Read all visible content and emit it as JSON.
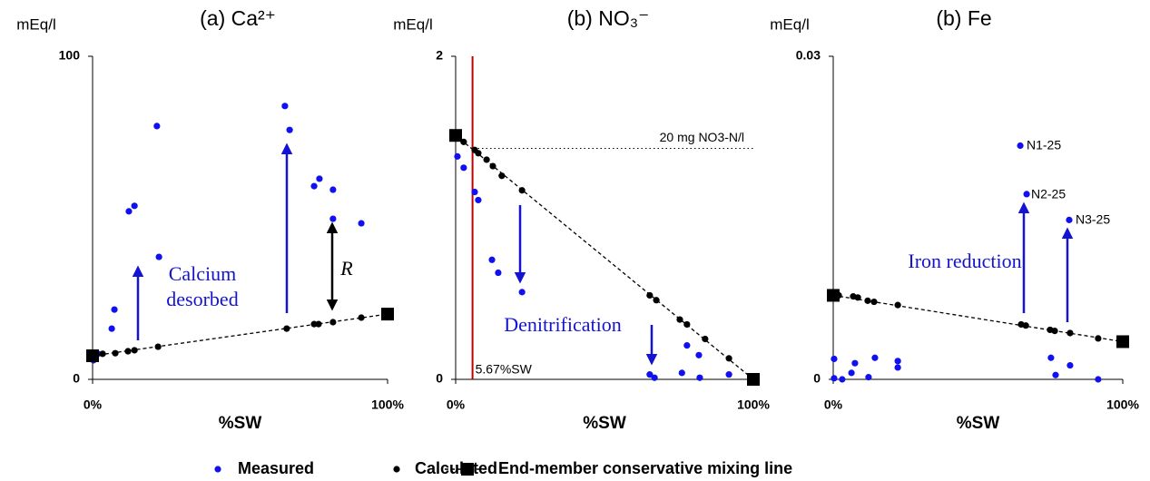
{
  "chart_data": [
    {
      "type": "scatter",
      "title": "(a) Ca²⁺",
      "ylabel": "mEq/l",
      "xlabel": "%SW",
      "xlim": [
        0,
        100
      ],
      "ylim": [
        0,
        100
      ],
      "xticks": [
        {
          "value": 0,
          "label": "0%"
        },
        {
          "value": 100,
          "label": "100%"
        }
      ],
      "yticks": [
        0,
        100
      ],
      "series": [
        {
          "name": "Measured",
          "color": "#1010f0",
          "x": [
            0.3,
            1.8,
            6.5,
            7.4,
            12.3,
            14.2,
            22.5,
            21.8,
            65.2,
            66.8,
            75.1,
            76.9,
            81.5,
            81.5,
            91.1
          ],
          "values": [
            5.9,
            7.9,
            15.7,
            21.6,
            52,
            53.7,
            37.9,
            78.4,
            84.6,
            77.2,
            59.8,
            62.1,
            58.7,
            49.7,
            48.3
          ]
        },
        {
          "name": "Calculated",
          "color": "#000000",
          "x": [
            0.3,
            3.4,
            7.7,
            12,
            14.2,
            22.2,
            65.8,
            75.1,
            76.6,
            81.5,
            91.1
          ],
          "values": [
            7.6,
            7.9,
            8.1,
            8.7,
            9.0,
            10.1,
            15.7,
            17.1,
            17.1,
            17.7,
            19.1
          ]
        },
        {
          "name": "End-member conservative mixing line",
          "color": "#000000",
          "x": [
            0,
            100
          ],
          "values": [
            7.3,
            20.2
          ]
        }
      ],
      "annotations": [
        "Calcium",
        "desorbed",
        "R"
      ]
    },
    {
      "type": "scatter",
      "title": "(b) NO₃⁻",
      "ylabel": "mEq/l",
      "xlabel": "%SW",
      "xlim": [
        0,
        100
      ],
      "ylim": [
        0,
        2
      ],
      "xticks": [
        {
          "value": 0,
          "label": "0%"
        },
        {
          "value": 100,
          "label": "100%"
        }
      ],
      "yticks": [
        0,
        2
      ],
      "vline": {
        "value": 5.67,
        "label": "5.67%SW",
        "color": "#c00000"
      },
      "hline": {
        "value": 1.43,
        "label": "20 mg NO3-N/l"
      },
      "series": [
        {
          "color": "#1010f0",
          "x": [
            0.6,
            2.7,
            6.4,
            7.6,
            12.2,
            14.3,
            22.3,
            65.2,
            66.8,
            76,
            77.7,
            81.7,
            82,
            91.8
          ],
          "values": [
            1.38,
            1.31,
            1.16,
            1.11,
            0.74,
            0.66,
            0.54,
            0.03,
            0.01,
            0.04,
            0.21,
            0.15,
            0.01,
            0.03
          ]
        },
        {
          "color": "#000000",
          "x": [
            2.7,
            6.4,
            7.6,
            10.4,
            12.5,
            15.5,
            22.3,
            65.2,
            67.4,
            75.3,
            77.7,
            83.8,
            91.8
          ],
          "values": [
            1.47,
            1.42,
            1.4,
            1.36,
            1.32,
            1.26,
            1.17,
            0.52,
            0.49,
            0.37,
            0.34,
            0.25,
            0.13
          ]
        },
        {
          "color": "#000000",
          "x": [
            0,
            100
          ],
          "values": [
            1.51,
            0
          ]
        }
      ],
      "annotations": [
        "Denitrification"
      ]
    },
    {
      "type": "scatter",
      "title": "(b) Fe",
      "ylabel": "mEq/l",
      "xlabel": "%SW",
      "xlim": [
        0,
        100
      ],
      "ylim": [
        0,
        0.03
      ],
      "xticks": [
        {
          "value": 0,
          "label": "0%"
        },
        {
          "value": 100,
          "label": "100%"
        }
      ],
      "yticks": [
        0,
        0.03
      ],
      "series": [
        {
          "color": "#1010f0",
          "x": [
            0.3,
            0.3,
            3.1,
            6.3,
            7.5,
            12.2,
            14.4,
            22.3,
            22.3,
            64.6,
            66.8,
            75.2,
            76.8,
            81.8,
            81.5,
            91.5
          ],
          "values": [
            0.0019,
            0.0001,
            0,
            0.0006,
            0.0015,
            0.0002,
            0.002,
            0.0011,
            0.0017,
            0.0217,
            0.0172,
            0.002,
            0.0004,
            0.0013,
            0.0148,
            0
          ]
        },
        {
          "color": "#000000",
          "x": [
            1.9,
            6.9,
            8.5,
            11.9,
            14.1,
            22.3,
            64.9,
            66.5,
            74.9,
            76.5,
            81.8,
            91.5
          ],
          "values": [
            0.0078,
            0.0077,
            0.0076,
            0.0073,
            0.0072,
            0.0069,
            0.0051,
            0.005,
            0.0046,
            0.0045,
            0.0043,
            0.0038
          ]
        },
        {
          "color": "#000000",
          "x": [
            0,
            100
          ],
          "values": [
            0.0078,
            0.0035
          ]
        }
      ],
      "annotations": [
        "Iron reduction",
        "N1-25",
        "N2-25",
        "N3-25"
      ]
    }
  ]
}
